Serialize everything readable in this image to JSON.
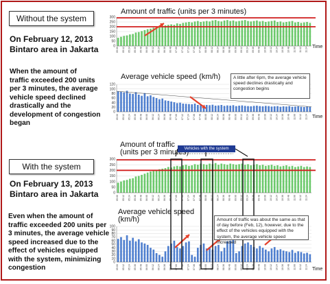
{
  "left": {
    "without_label": "Without the system",
    "date1": "On February 12, 2013\nBintaro area in Jakarta",
    "desc1": "When the amount of\ntraffic exceeded 200 units\nper 3 minutes, the average\nvehicle speed declined\ndrastically and the\ndevelopment of congestion\nbegan",
    "with_label": "With the system",
    "date2": "On February 13, 2013\nBintaro area in Jakarta",
    "desc2": "Even when the amount of\ntraffic exceeded 200 units per\n3 minutes, the average vehicle\nspeed increased due to the\neffect of vehicles equipped\nwith the system, minimizing\ncongestion"
  },
  "annotations": {
    "ann1": "A little after 6pm, the average vehicle speed declines drastically and congestion begins",
    "ann2": "Amount of traffic was about the same as that of day before (Feb, 12), however, due to the effect of the vehicles equipped with the system, the average vehicle speed increased",
    "vehicles_label": "Vehicles with the system"
  },
  "colors": {
    "frame": "#b01818",
    "traffic": "#6cc96c",
    "speed": "#4f7fcf",
    "threshold": "#d21e1e",
    "arrow": "#e5402a",
    "label_box": "#1f3a93"
  },
  "chart_data": [
    {
      "type": "bar",
      "title": "Amount of traffic (units per 3 minutes)",
      "xlabel": "Time",
      "ylabel": "",
      "ylim": [
        0,
        300
      ],
      "yticks": [
        0,
        50,
        100,
        150,
        200,
        250,
        300
      ],
      "threshold": 200,
      "threshold_color": "#d21e1e",
      "categories": [
        "05:00",
        "05:06",
        "05:12",
        "05:18",
        "05:24",
        "05:30",
        "05:36",
        "05:42",
        "05:48",
        "05:54",
        "06:00",
        "06:06",
        "06:12",
        "06:18",
        "06:24",
        "06:30",
        "06:36",
        "06:42",
        "06:48",
        "06:54",
        "07:00",
        "07:06",
        "07:12",
        "07:18",
        "07:24",
        "07:30",
        "07:36",
        "07:42",
        "07:48",
        "07:54",
        "08:00",
        "08:06",
        "08:12",
        "08:18",
        "08:24",
        "08:30",
        "08:36",
        "08:42",
        "08:48",
        "08:54",
        "09:00",
        "09:06",
        "09:12",
        "09:18",
        "09:24",
        "09:30",
        "09:36",
        "09:42",
        "09:48",
        "09:54",
        "10:00",
        "10:06",
        "10:12",
        "10:18",
        "10:24",
        "10:30",
        "10:36",
        "10:42",
        "10:48",
        "10:54",
        "11:00",
        "11:06",
        "11:12",
        "11:18",
        "11:24",
        "11:30"
      ],
      "values": [
        85,
        95,
        105,
        110,
        120,
        125,
        140,
        145,
        155,
        165,
        175,
        180,
        190,
        195,
        205,
        210,
        215,
        220,
        225,
        220,
        235,
        230,
        240,
        245,
        250,
        245,
        255,
        260,
        250,
        255,
        260,
        255,
        265,
        270,
        260,
        255,
        265,
        270,
        260,
        265,
        255,
        260,
        265,
        270,
        260,
        255,
        260,
        265,
        255,
        260,
        250,
        255,
        260,
        265,
        250,
        255,
        245,
        250,
        255,
        260,
        245,
        250,
        240,
        245,
        250,
        240
      ],
      "series_color": "#6cc96c"
    },
    {
      "type": "bar",
      "title": "Average vehicle speed (km/h)",
      "xlabel": "Time",
      "ylabel": "",
      "ylim": [
        0,
        120
      ],
      "yticks": [
        0,
        20,
        40,
        60,
        80,
        100,
        120
      ],
      "trendline": true,
      "categories": [
        "05:00",
        "05:06",
        "05:12",
        "05:18",
        "05:24",
        "05:30",
        "05:36",
        "05:42",
        "05:48",
        "05:54",
        "06:00",
        "06:06",
        "06:12",
        "06:18",
        "06:24",
        "06:30",
        "06:36",
        "06:42",
        "06:48",
        "06:54",
        "07:00",
        "07:06",
        "07:12",
        "07:18",
        "07:24",
        "07:30",
        "07:36",
        "07:42",
        "07:48",
        "07:54",
        "08:00",
        "08:06",
        "08:12",
        "08:18",
        "08:24",
        "08:30",
        "08:36",
        "08:42",
        "08:48",
        "08:54",
        "09:00",
        "09:06",
        "09:12",
        "09:18",
        "09:24",
        "09:30",
        "09:36",
        "09:42",
        "09:48",
        "09:54",
        "10:00",
        "10:06",
        "10:12",
        "10:18",
        "10:24",
        "10:30",
        "10:36",
        "10:42",
        "10:48",
        "10:54",
        "11:00",
        "11:06",
        "11:12",
        "11:18",
        "11:24",
        "11:30"
      ],
      "values": [
        90,
        88,
        85,
        92,
        80,
        78,
        86,
        75,
        70,
        82,
        68,
        72,
        65,
        60,
        55,
        58,
        50,
        48,
        45,
        42,
        38,
        40,
        36,
        35,
        34,
        33,
        36,
        30,
        32,
        28,
        30,
        29,
        31,
        27,
        28,
        30,
        26,
        28,
        27,
        29,
        25,
        27,
        28,
        26,
        25,
        24,
        26,
        27,
        25,
        24,
        26,
        25,
        23,
        24,
        25,
        22,
        24,
        23,
        25,
        22,
        23,
        24,
        22,
        21,
        23,
        22
      ],
      "series_color": "#4f7fcf"
    },
    {
      "type": "bar",
      "title": "Amount of traffic\n(units per 3 minutes)",
      "xlabel": "",
      "ylabel": "",
      "ylim": [
        0,
        300
      ],
      "yticks": [
        0,
        50,
        100,
        150,
        200,
        250,
        300
      ],
      "threshold": 200,
      "threshold_color": "#d21e1e",
      "categories": [
        "05:00",
        "05:06",
        "05:12",
        "05:18",
        "05:24",
        "05:30",
        "05:36",
        "05:42",
        "05:48",
        "05:54",
        "06:00",
        "06:06",
        "06:12",
        "06:18",
        "06:24",
        "06:30",
        "06:36",
        "06:42",
        "06:48",
        "06:54",
        "07:00",
        "07:06",
        "07:12",
        "07:18",
        "07:24",
        "07:30",
        "07:36",
        "07:42",
        "07:48",
        "07:54",
        "08:00",
        "08:06",
        "08:12",
        "08:18",
        "08:24",
        "08:30",
        "08:36",
        "08:42",
        "08:48",
        "08:54",
        "09:00",
        "09:06",
        "09:12",
        "09:18",
        "09:24",
        "09:30",
        "09:36",
        "09:42",
        "09:48",
        "09:54",
        "10:00",
        "10:06",
        "10:12",
        "10:18",
        "10:24",
        "10:30",
        "10:36",
        "10:42",
        "10:48",
        "10:54",
        "11:00",
        "11:06",
        "11:12",
        "11:18",
        "11:24",
        "11:30"
      ],
      "values": [
        90,
        100,
        110,
        115,
        125,
        130,
        145,
        150,
        160,
        170,
        180,
        190,
        195,
        205,
        210,
        215,
        220,
        230,
        225,
        235,
        240,
        235,
        245,
        250,
        240,
        245,
        255,
        250,
        260,
        255,
        250,
        260,
        255,
        265,
        250,
        260,
        255,
        250,
        260,
        255,
        250,
        255,
        260,
        250,
        255,
        245,
        250,
        255,
        245,
        250,
        240,
        245,
        250,
        240,
        245,
        235,
        240,
        245,
        235,
        240,
        230,
        235,
        240,
        230,
        235,
        230
      ],
      "series_color": "#6cc96c"
    },
    {
      "type": "bar",
      "title": "Average vehicle speed\n(km/h)",
      "xlabel": "Time",
      "ylabel": "",
      "ylim": [
        0,
        100
      ],
      "yticks": [
        0,
        10,
        20,
        30,
        40,
        50,
        60,
        70,
        80,
        90,
        100
      ],
      "categories": [
        "05:00",
        "05:06",
        "05:12",
        "05:18",
        "05:24",
        "05:30",
        "05:36",
        "05:42",
        "05:48",
        "05:54",
        "06:00",
        "06:06",
        "06:12",
        "06:18",
        "06:24",
        "06:30",
        "06:36",
        "06:42",
        "06:48",
        "06:54",
        "07:00",
        "07:06",
        "07:12",
        "07:18",
        "07:24",
        "07:30",
        "07:36",
        "07:42",
        "07:48",
        "07:54",
        "08:00",
        "08:06",
        "08:12",
        "08:18",
        "08:24",
        "08:30",
        "08:36",
        "08:42",
        "08:48",
        "08:54",
        "09:00",
        "09:06",
        "09:12",
        "09:18",
        "09:24",
        "09:30",
        "09:36",
        "09:42",
        "09:48",
        "09:54",
        "10:00",
        "10:06",
        "10:12",
        "10:18",
        "10:24",
        "10:30",
        "10:36",
        "10:42",
        "10:48",
        "10:54",
        "11:00",
        "11:06",
        "11:12",
        "11:18",
        "11:24",
        "11:30"
      ],
      "values": [
        65,
        70,
        62,
        75,
        60,
        68,
        58,
        64,
        55,
        52,
        48,
        40,
        35,
        25,
        20,
        15,
        30,
        45,
        52,
        60,
        42,
        38,
        45,
        55,
        58,
        20,
        15,
        40,
        48,
        52,
        38,
        42,
        35,
        45,
        48,
        30,
        40,
        58,
        60,
        62,
        25,
        30,
        45,
        52,
        55,
        48,
        42,
        38,
        45,
        40,
        35,
        30,
        38,
        42,
        34,
        36,
        32,
        30,
        28,
        34,
        26,
        30,
        28,
        24,
        26,
        22
      ],
      "series_color": "#4f7fcf"
    }
  ]
}
